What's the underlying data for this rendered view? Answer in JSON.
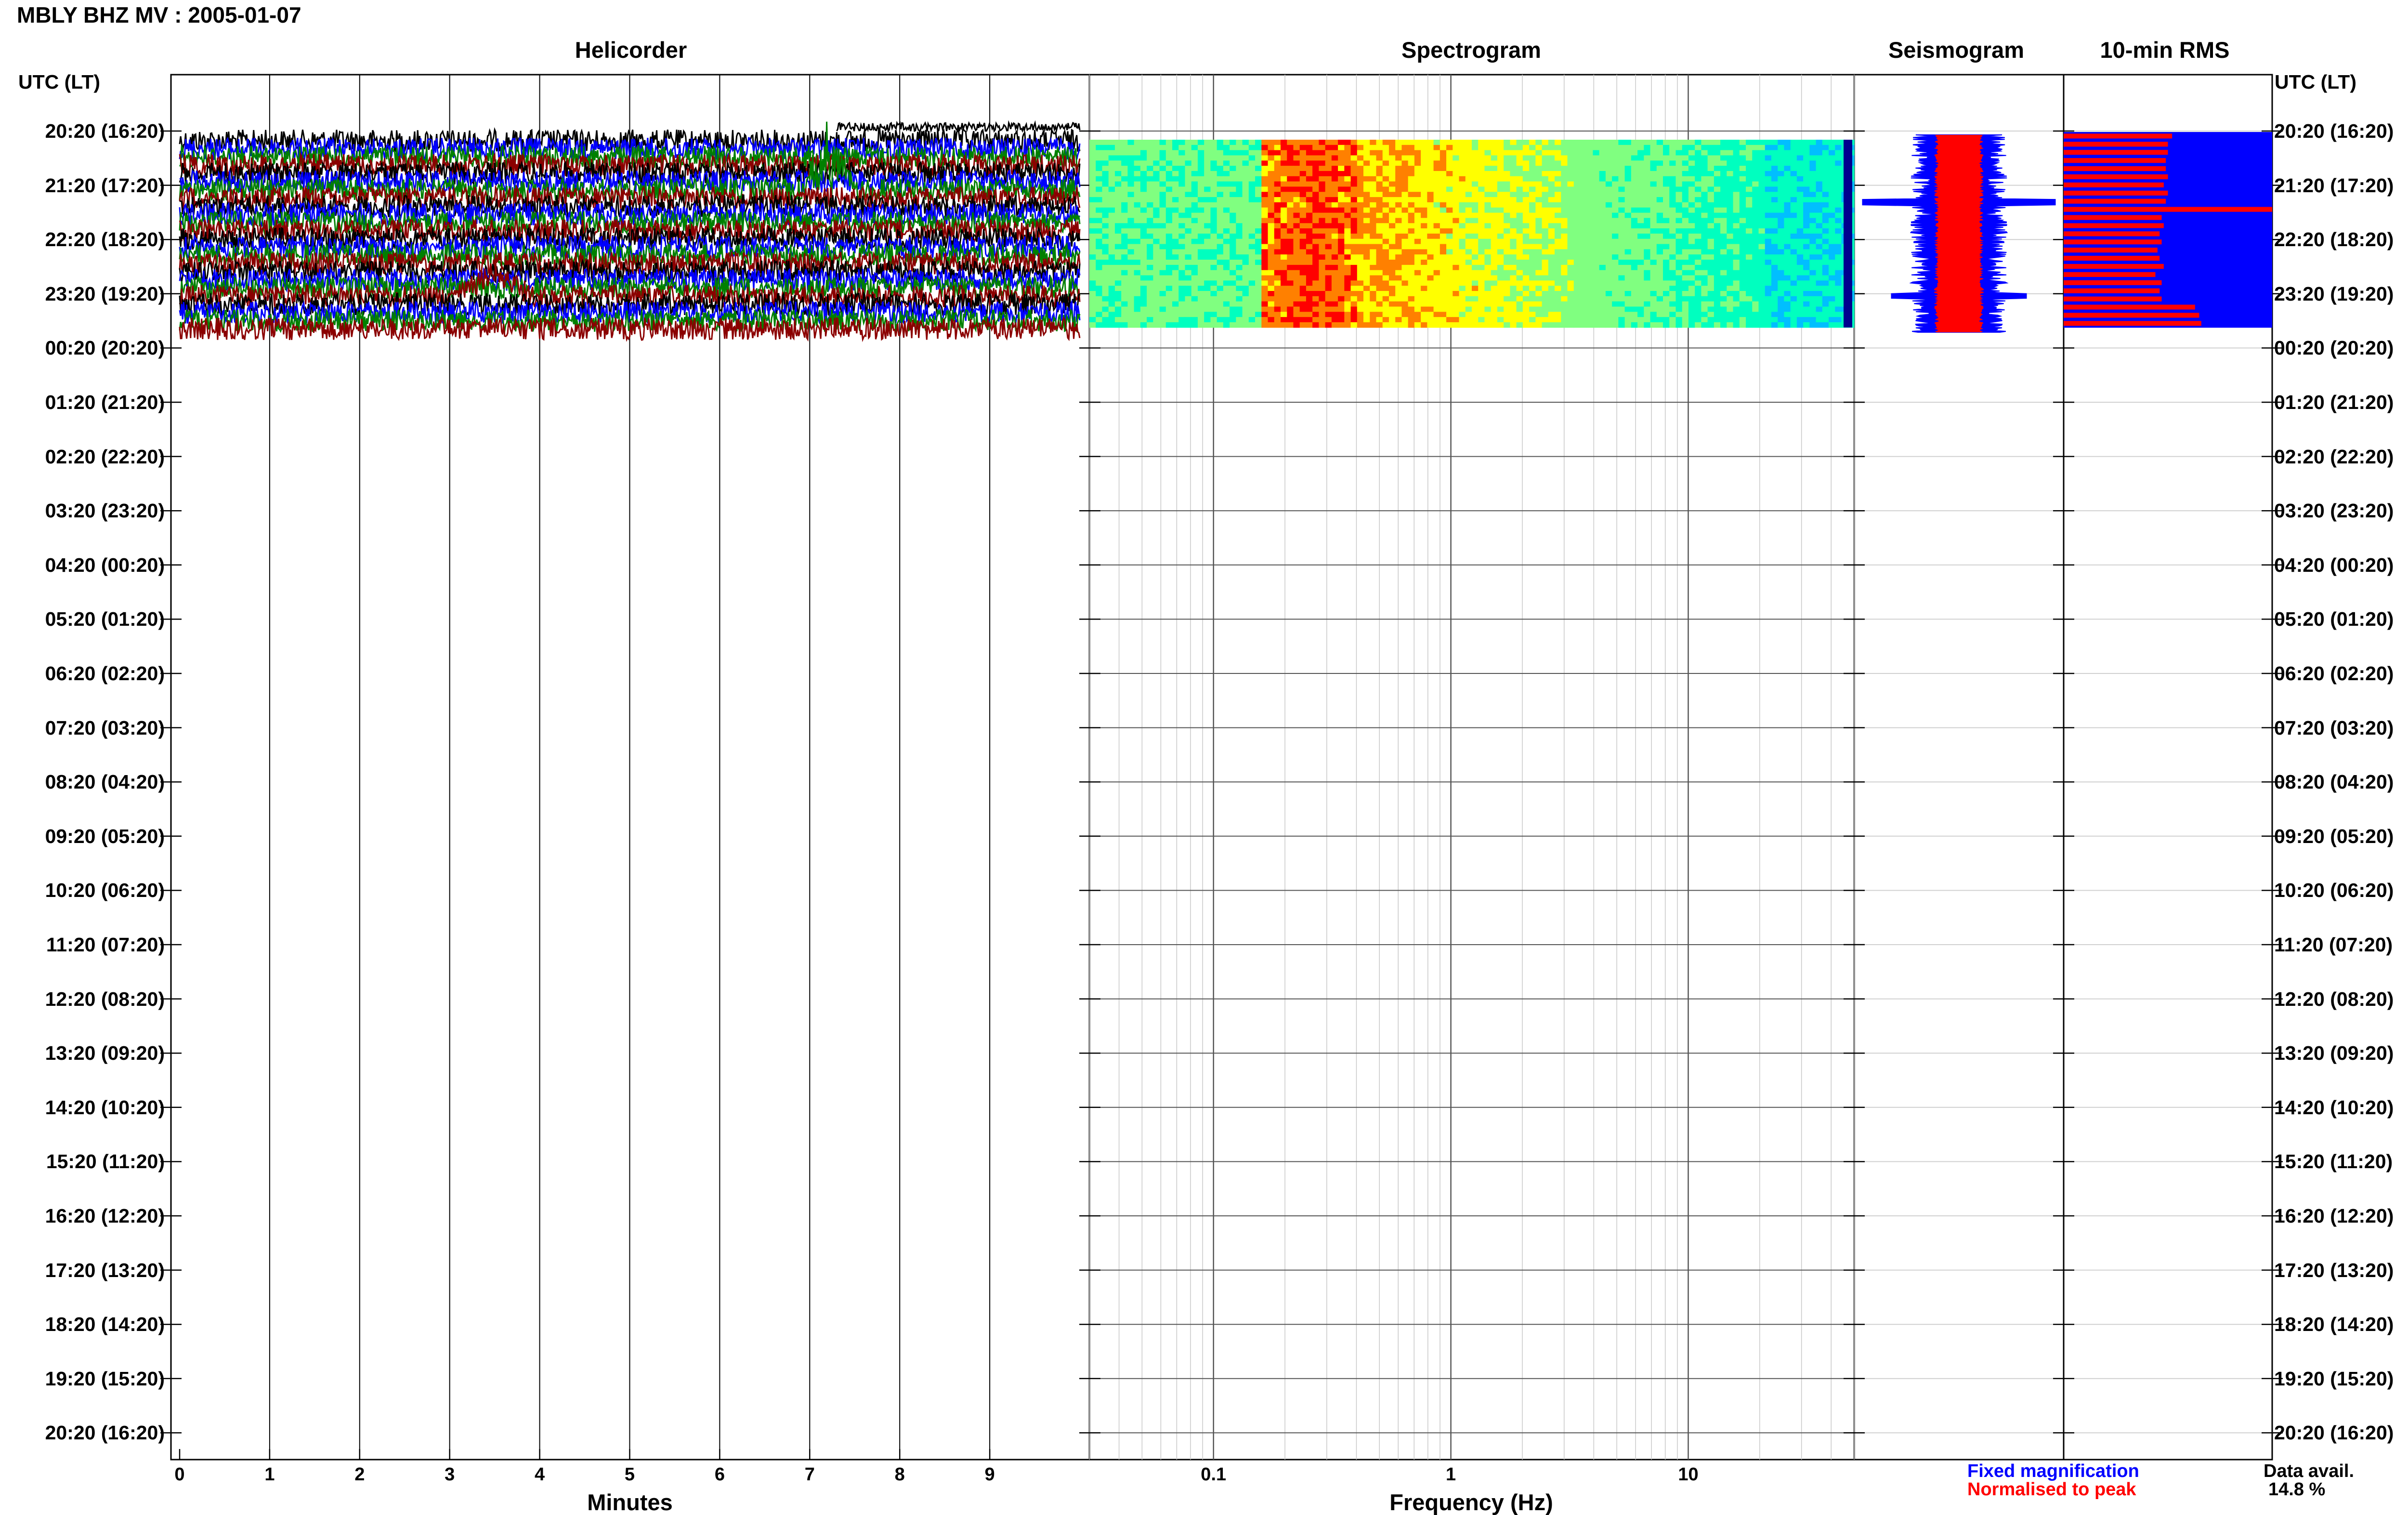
{
  "title": "MBLY BHZ MV : 2005-01-07",
  "panels": {
    "helicorder": "Helicorder",
    "spectrogram": "Spectrogram",
    "seismogram": "Seismogram",
    "rms": "10-min RMS"
  },
  "utc_header_left": "UTC (LT)",
  "utc_header_right": "UTC (LT)",
  "time_ticks": [
    "20:20 (16:20)",
    "21:20 (17:20)",
    "22:20 (18:20)",
    "23:20 (19:20)",
    "00:20 (20:20)",
    "01:20 (21:20)",
    "02:20 (22:20)",
    "03:20 (23:20)",
    "04:20 (00:20)",
    "05:20 (01:20)",
    "06:20 (02:20)",
    "07:20 (03:20)",
    "08:20 (04:20)",
    "09:20 (05:20)",
    "10:20 (06:20)",
    "11:20 (07:20)",
    "12:20 (08:20)",
    "13:20 (09:20)",
    "14:20 (10:20)",
    "15:20 (11:20)",
    "16:20 (12:20)",
    "17:20 (13:20)",
    "18:20 (14:20)",
    "19:20 (15:20)",
    "20:20 (16:20)"
  ],
  "helicorder_xticks": [
    "0",
    "1",
    "2",
    "3",
    "4",
    "5",
    "6",
    "7",
    "8",
    "9"
  ],
  "helicorder_xlabel": "Minutes",
  "spectrogram_xticks": [
    "0.1",
    "1",
    "10"
  ],
  "spectrogram_xlabel": "Frequency (Hz)",
  "legend": {
    "fixed": "Fixed magnification",
    "normalised": "Normalised to peak"
  },
  "data_avail": {
    "label": "Data avail.",
    "value": "14.8 %"
  },
  "colors": {
    "trace_cycle": [
      "#000000",
      "#0000ff",
      "#008000",
      "#8b0000"
    ],
    "rms_fixed": "#0000ff",
    "rms_normalised": "#ff0000",
    "seis_fixed": "#0000ff",
    "seis_normalised": "#ff0000",
    "spectrogram_ramp": [
      "#00008f",
      "#0000ff",
      "#00bfff",
      "#00ffbf",
      "#80ff80",
      "#ffff00",
      "#ff8000",
      "#ff0000",
      "#8b0000"
    ]
  },
  "chart_data": [
    {
      "type": "line",
      "title": "Helicorder",
      "xlabel": "Minutes",
      "xlim": [
        0,
        10
      ],
      "ylabel": "UTC (LT)",
      "rows_total": 25,
      "rows_with_data": 4,
      "trace_rows_per_hour": 6,
      "event_minute": 7.2,
      "event_row": "21:20 (17:20)"
    },
    {
      "type": "heatmap",
      "title": "Spectrogram",
      "xlabel": "Frequency (Hz)",
      "xscale": "log",
      "xlim": [
        0.03,
        50
      ],
      "dominant_band_hz": [
        0.18,
        0.35
      ],
      "hours_with_data": 4
    },
    {
      "type": "line",
      "title": "Seismogram",
      "series": [
        {
          "name": "Fixed magnification",
          "color": "#0000ff"
        },
        {
          "name": "Normalised to peak",
          "color": "#ff0000"
        }
      ]
    },
    {
      "type": "bar",
      "title": "10-min RMS",
      "series": [
        {
          "name": "Fixed magnification",
          "values": [
            1,
            1,
            1,
            1,
            1,
            1,
            1,
            1,
            1,
            1,
            1,
            1,
            1,
            1,
            1,
            1,
            1,
            1,
            1,
            1,
            1,
            1,
            1,
            1
          ]
        },
        {
          "name": "Normalised to peak",
          "values": [
            0.52,
            0.5,
            0.5,
            0.49,
            0.49,
            0.5,
            0.48,
            0.5,
            0.49,
            1.0,
            0.47,
            0.48,
            0.46,
            0.47,
            0.45,
            0.46,
            0.48,
            0.44,
            0.47,
            0.46,
            0.47,
            0.63,
            0.65,
            0.66
          ]
        }
      ]
    }
  ]
}
